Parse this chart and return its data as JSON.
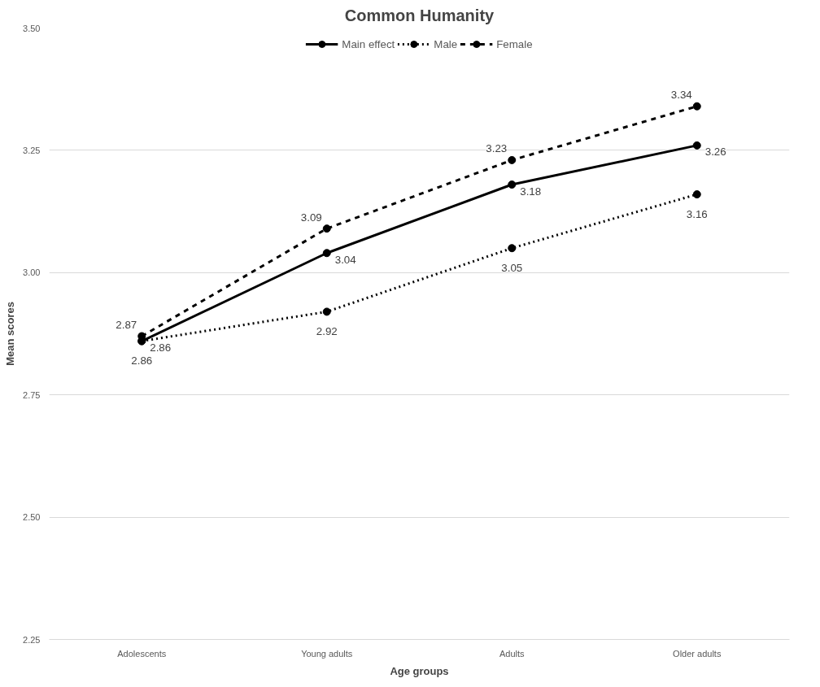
{
  "chart_data": {
    "type": "line",
    "title": "Common Humanity",
    "xlabel": "Age groups",
    "ylabel": "Mean scores",
    "categories": [
      "Adolescents",
      "Young adults",
      "Adults",
      "Older adults"
    ],
    "series": [
      {
        "name": "Main effect",
        "color": "#000000",
        "line_style": "solid",
        "values": [
          2.86,
          3.04,
          3.18,
          3.26
        ]
      },
      {
        "name": "Male",
        "color": "#000000",
        "line_style": "dotted",
        "values": [
          2.86,
          2.92,
          3.05,
          3.16
        ]
      },
      {
        "name": "Female",
        "color": "#000000",
        "line_style": "dashed",
        "values": [
          2.87,
          3.09,
          3.23,
          3.34
        ]
      }
    ],
    "ylim": [
      2.25,
      3.5
    ],
    "yticks": [
      {
        "value": 2.25,
        "label": "2.25"
      },
      {
        "value": 2.5,
        "label": "2.50"
      },
      {
        "value": 2.75,
        "label": "2.75"
      },
      {
        "value": 3.0,
        "label": "3.00"
      },
      {
        "value": 3.25,
        "label": "3.25"
      },
      {
        "value": 3.5,
        "label": "3.50"
      }
    ],
    "grid": "y",
    "legend": "top",
    "marker": "circle",
    "data_labels": true
  }
}
